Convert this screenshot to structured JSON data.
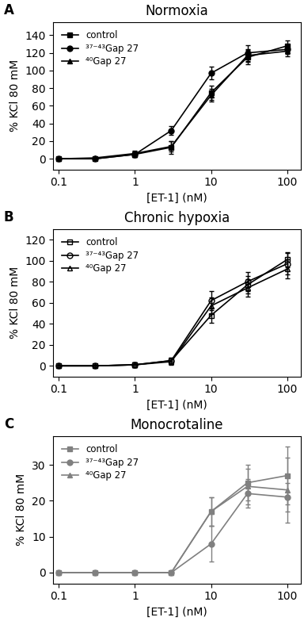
{
  "chart_data": [
    {
      "type": "line",
      "title": "Normoxia",
      "x_label": "[ET-1] (nM)",
      "y_label": "% KCl 80 mM",
      "annotations": [
        "A"
      ],
      "log": "x",
      "legend": "upper left",
      "xlim": [
        0.085,
        150
      ],
      "xticks": [
        0.1,
        1,
        10,
        100
      ],
      "ylim": [
        -12,
        155
      ],
      "yticks": [
        0,
        20,
        40,
        60,
        80,
        100,
        120,
        140
      ],
      "x": [
        0.1,
        0.3,
        1.0,
        3.0,
        10.0,
        30.0,
        100.0
      ],
      "series": [
        {
          "name": "control",
          "marker": "square",
          "color": "#000000",
          "values": [
            0,
            0,
            5,
            13,
            75,
            115,
            128
          ],
          "yerr": [
            1,
            1,
            3,
            7,
            8,
            8,
            6
          ]
        },
        {
          "name": "³⁷⁻⁴³Gap 27",
          "marker": "circle",
          "color": "#000000",
          "values": [
            0,
            0,
            5,
            32,
            97,
            120,
            124
          ],
          "yerr": [
            1,
            1,
            3,
            5,
            7,
            9,
            5
          ]
        },
        {
          "name": "⁴⁰Gap 27",
          "marker": "triangle",
          "color": "#000000",
          "values": [
            0,
            1,
            6,
            14,
            72,
            117,
            122
          ],
          "yerr": [
            1,
            1,
            3,
            6,
            7,
            7,
            6
          ]
        }
      ]
    },
    {
      "type": "line",
      "title": "Chronic hypoxia",
      "x_label": "[ET-1] (nM)",
      "y_label": "% KCl 80 mM",
      "annotations": [
        "B"
      ],
      "log": "x",
      "legend": "upper left",
      "xlim": [
        0.085,
        150
      ],
      "xticks": [
        0.1,
        1,
        10,
        100
      ],
      "ylim": [
        -10,
        130
      ],
      "yticks": [
        0,
        20,
        40,
        60,
        80,
        100,
        120
      ],
      "x": [
        0.1,
        0.3,
        1.0,
        3.0,
        10.0,
        30.0,
        100.0
      ],
      "series": [
        {
          "name": "control",
          "marker": "open_square",
          "color": "#000000",
          "values": [
            0,
            0,
            1,
            5,
            48,
            77,
            101
          ],
          "yerr": [
            1,
            1,
            2,
            3,
            7,
            8,
            7
          ]
        },
        {
          "name": "³⁷⁻⁴³Gap 27",
          "marker": "open_circle",
          "color": "#000000",
          "values": [
            0,
            0,
            1,
            5,
            62,
            80,
            97
          ],
          "yerr": [
            1,
            1,
            2,
            3,
            9,
            9,
            10
          ]
        },
        {
          "name": "⁴⁰Gap 27",
          "marker": "open_triangle",
          "color": "#000000",
          "values": [
            0,
            0,
            1,
            4,
            57,
            74,
            92
          ],
          "yerr": [
            1,
            1,
            2,
            3,
            8,
            8,
            9
          ]
        }
      ]
    },
    {
      "type": "line",
      "title": "Monocrotaline",
      "x_label": "[ET-1] (nM)",
      "y_label": "% KCl 80 mM",
      "annotations": [
        "C"
      ],
      "log": "x",
      "legend": "upper left",
      "xlim": [
        0.085,
        150
      ],
      "xticks": [
        0.1,
        1,
        10,
        100
      ],
      "ylim": [
        -3,
        38
      ],
      "yticks": [
        0,
        10,
        20,
        30
      ],
      "x": [
        0.1,
        0.3,
        1.0,
        3.0,
        10.0,
        30.0,
        100.0
      ],
      "series": [
        {
          "name": "control",
          "marker": "square",
          "color": "#808080",
          "values": [
            0,
            0,
            0,
            0,
            17,
            25,
            27
          ],
          "yerr": [
            0.5,
            0.5,
            0.5,
            0.5,
            4,
            5,
            8
          ]
        },
        {
          "name": "³⁷⁻⁴³Gap 27",
          "marker": "circle",
          "color": "#808080",
          "values": [
            0,
            0,
            0,
            0,
            8,
            22,
            21
          ],
          "yerr": [
            0.5,
            0.5,
            0.5,
            0.5,
            5,
            4,
            4
          ]
        },
        {
          "name": "⁴⁰Gap 27",
          "marker": "triangle",
          "color": "#808080",
          "values": [
            0,
            0,
            0,
            0,
            17,
            24,
            23
          ],
          "yerr": [
            0.5,
            0.5,
            0.5,
            0.5,
            4,
            5,
            9
          ]
        }
      ]
    }
  ]
}
